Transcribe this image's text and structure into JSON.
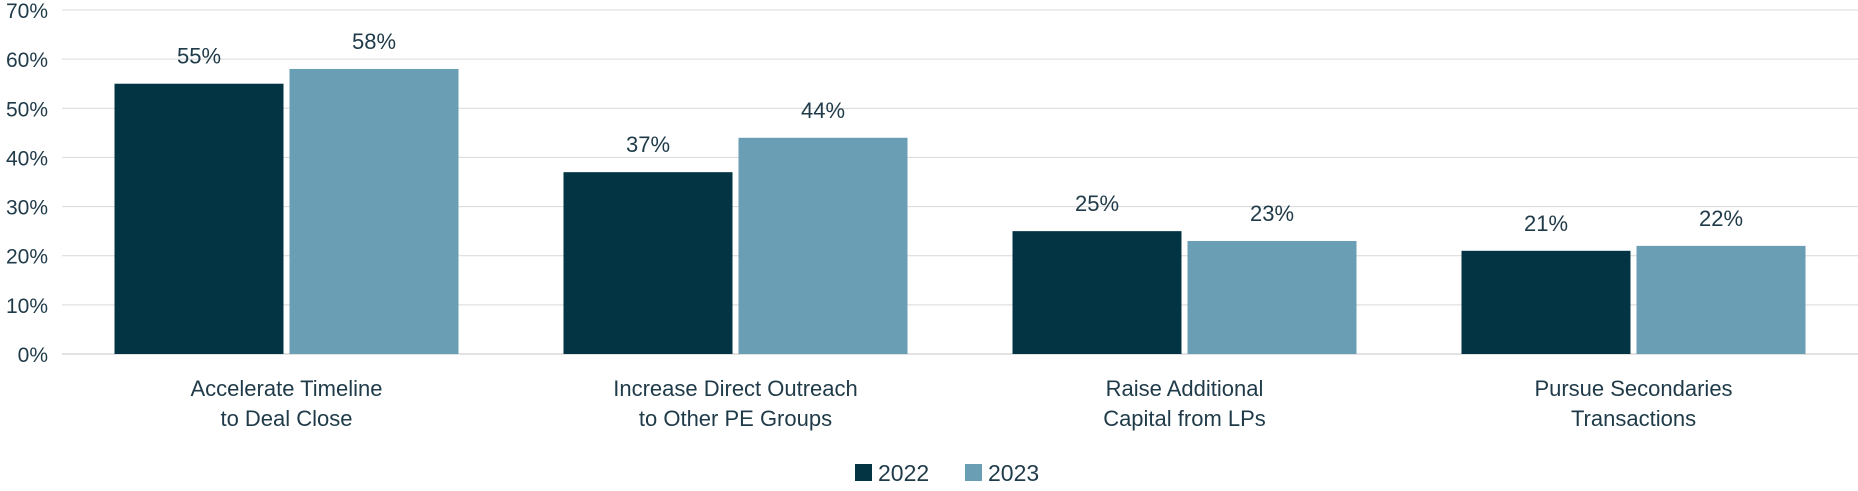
{
  "chart_data": {
    "type": "bar",
    "categories": [
      [
        "Accelerate Timeline",
        "to Deal Close"
      ],
      [
        "Increase Direct Outreach",
        "to Other PE Groups"
      ],
      [
        "Raise Additional",
        "Capital from LPs"
      ],
      [
        "Pursue Secondaries",
        "Transactions"
      ]
    ],
    "series": [
      {
        "name": "2022",
        "values": [
          55,
          37,
          25,
          21
        ],
        "labels": [
          "55%",
          "37%",
          "25%",
          "21%"
        ],
        "color": "#023444"
      },
      {
        "name": "2023",
        "values": [
          58,
          44,
          23,
          22
        ],
        "labels": [
          "58%",
          "44%",
          "23%",
          "22%"
        ],
        "color": "#6a9eb5"
      }
    ],
    "ylim": [
      0,
      70
    ],
    "yticks": [
      "0%",
      "10%",
      "20%",
      "30%",
      "40%",
      "50%",
      "60%",
      "70%"
    ],
    "grid": true,
    "legend_position": "bottom-center",
    "title": "",
    "xlabel": "",
    "ylabel": ""
  }
}
